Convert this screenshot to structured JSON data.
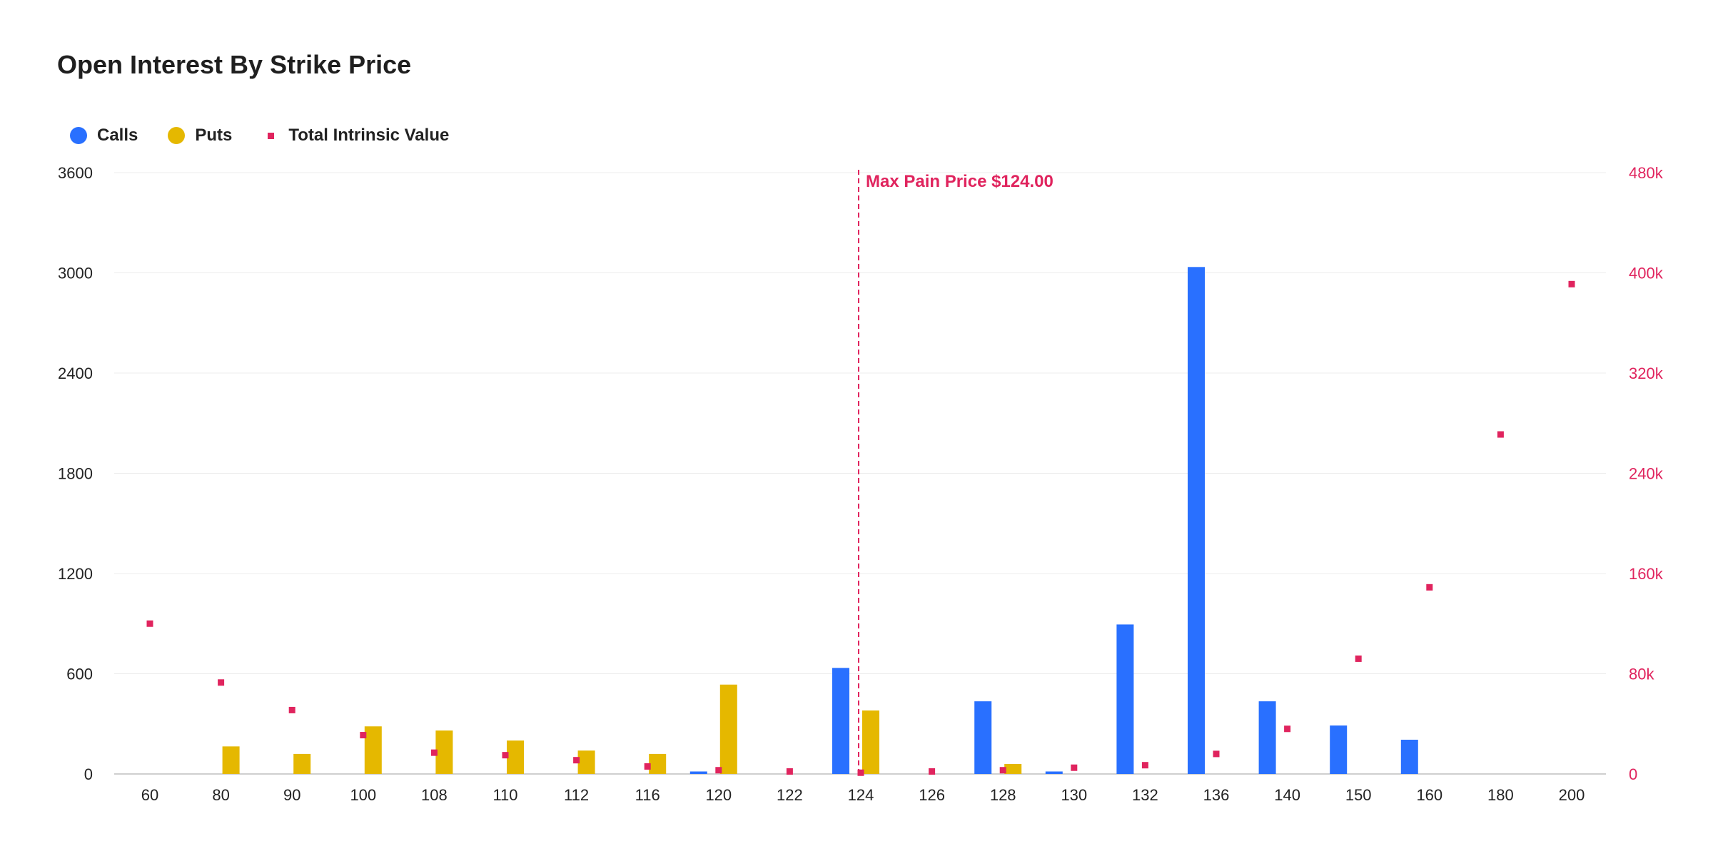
{
  "chart_data": {
    "type": "bar",
    "title": "Open Interest By Strike Price",
    "categories": [
      "60",
      "80",
      "90",
      "100",
      "108",
      "110",
      "112",
      "116",
      "120",
      "122",
      "124",
      "126",
      "128",
      "130",
      "132",
      "136",
      "140",
      "150",
      "160",
      "180",
      "200"
    ],
    "series": [
      {
        "name": "Calls",
        "kind": "bar",
        "axis": "left",
        "color": "#2970ff",
        "values": [
          0,
          0,
          0,
          0,
          0,
          0,
          0,
          0,
          15,
          0,
          635,
          0,
          435,
          15,
          895,
          3035,
          435,
          290,
          205,
          0,
          0
        ]
      },
      {
        "name": "Puts",
        "kind": "bar",
        "axis": "left",
        "color": "#e5b800",
        "values": [
          0,
          165,
          120,
          285,
          260,
          200,
          140,
          120,
          535,
          0,
          380,
          0,
          60,
          0,
          0,
          0,
          0,
          0,
          0,
          0,
          0
        ]
      },
      {
        "name": "Total Intrinsic Value",
        "kind": "scatter",
        "axis": "right",
        "color": "#e0245e",
        "values": [
          120000,
          73000,
          51000,
          31000,
          17000,
          15000,
          11000,
          6000,
          3000,
          2000,
          1000,
          2000,
          3000,
          5000,
          7000,
          16000,
          36000,
          92000,
          149000,
          271000,
          391000
        ]
      }
    ],
    "yaxis_left": {
      "min": 0,
      "max": 3600,
      "ticks": [
        "0",
        "600",
        "1200",
        "1800",
        "2400",
        "3000",
        "3600"
      ]
    },
    "yaxis_right": {
      "min": 0,
      "max": 480000,
      "ticks": [
        "0",
        "80k",
        "160k",
        "240k",
        "320k",
        "400k",
        "480k"
      ],
      "color": "#e0245e"
    },
    "annotation": {
      "label": "Max Pain Price $124.00",
      "category": "124",
      "color": "#e0245e"
    },
    "grid": true,
    "legend_position": "top-left"
  }
}
